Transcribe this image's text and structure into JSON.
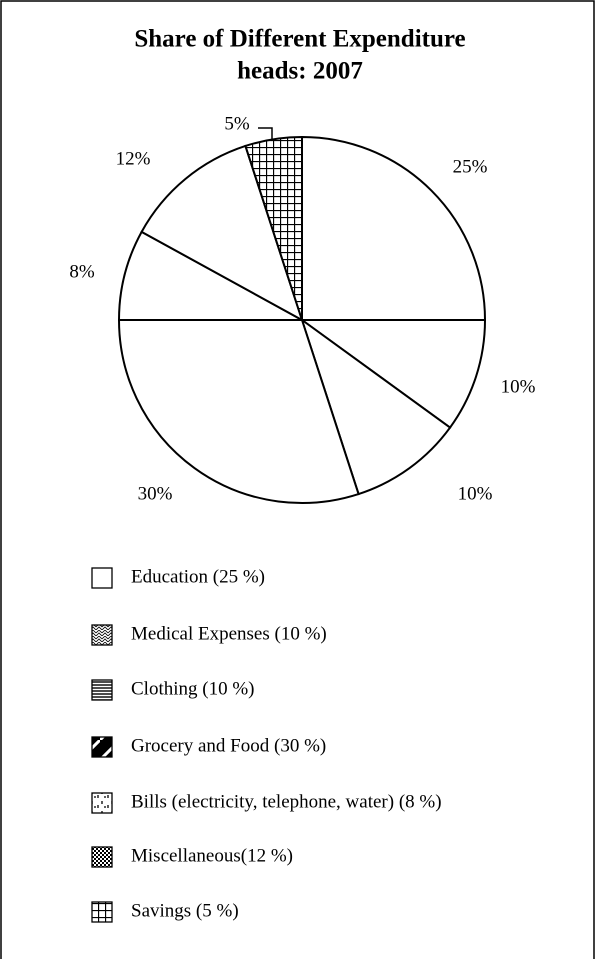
{
  "chart_data": {
    "type": "pie",
    "title": [
      "Share of Different Expenditure",
      "heads: 2007"
    ],
    "categories": [
      "Education",
      "Medical Expenses",
      "Clothing",
      "Grocery and Food",
      "Bills (electricity, telephone, water)",
      "Miscellaneous",
      "Savings"
    ],
    "values": [
      25,
      10,
      10,
      30,
      8,
      12,
      5
    ],
    "value_labels": [
      "25%",
      "10%",
      "10%",
      "30%",
      "8%",
      "12%",
      "5%"
    ],
    "legend_labels": [
      "Education (25 %)",
      "Medical Expenses (10 %)",
      "Clothing (10 %)",
      "Grocery and Food (30 %)",
      "Bills (electricity, telephone, water) (8 %)",
      "Miscellaneous(12 %)",
      "Savings (5 %)"
    ],
    "color": "#ffffff",
    "legend_patterns": [
      "none",
      "zigzag",
      "hlines",
      "diagonal",
      "dashes",
      "checker",
      "grid"
    ],
    "pie_patterns": [
      "none",
      "none",
      "none",
      "none",
      "none",
      "none",
      "grid"
    ]
  }
}
